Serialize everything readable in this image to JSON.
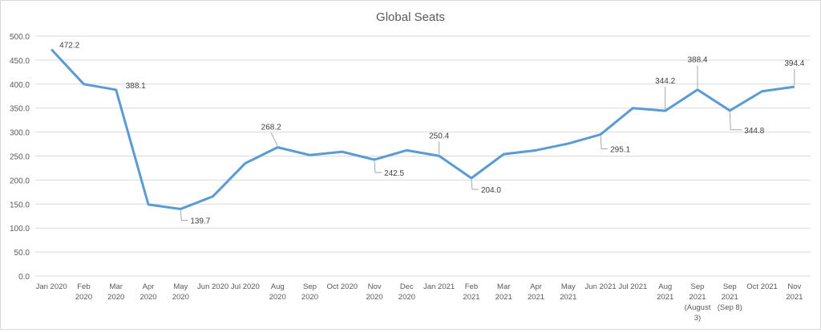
{
  "chart_data": {
    "type": "line",
    "title": "Global Seats",
    "xlabel": "",
    "ylabel": "",
    "ylim": [
      0,
      500
    ],
    "yticks": [
      "0.0",
      "50.0",
      "100.0",
      "150.0",
      "200.0",
      "250.0",
      "300.0",
      "350.0",
      "400.0",
      "450.0",
      "500.0"
    ],
    "grid": true,
    "legend": "none",
    "line_color": "#5b9bd5",
    "categories": [
      [
        "Jan 2020"
      ],
      [
        "Feb",
        "2020"
      ],
      [
        "Mar",
        "2020"
      ],
      [
        "Apr",
        "2020"
      ],
      [
        "May",
        "2020"
      ],
      [
        "Jun 2020"
      ],
      [
        "Jul 2020"
      ],
      [
        "Aug",
        "2020"
      ],
      [
        "Sep",
        "2020"
      ],
      [
        "Oct 2020"
      ],
      [
        "Nov",
        "2020"
      ],
      [
        "Dec",
        "2020"
      ],
      [
        "Jan 2021"
      ],
      [
        "Feb",
        "2021"
      ],
      [
        "Mar",
        "2021"
      ],
      [
        "Apr",
        "2021"
      ],
      [
        "May",
        "2021"
      ],
      [
        "Jun 2021"
      ],
      [
        "Jul 2021"
      ],
      [
        "Aug",
        "2021"
      ],
      [
        "Sep",
        "2021",
        "(August",
        "3)"
      ],
      [
        "Sep",
        "2021",
        "(Sep 8)"
      ],
      [
        "Oct 2021"
      ],
      [
        "Nov",
        "2021"
      ]
    ],
    "series": [
      {
        "name": "Global Seats",
        "values": [
          472.2,
          400.0,
          388.1,
          149.0,
          139.7,
          166.0,
          235.0,
          268.2,
          252.0,
          259.0,
          242.5,
          262.0,
          250.4,
          204.0,
          254.0,
          262.0,
          276.0,
          295.1,
          350.0,
          344.2,
          388.4,
          344.8,
          385.0,
          394.4
        ]
      }
    ],
    "data_labels": [
      {
        "index": 0,
        "text": "472.2"
      },
      {
        "index": 2,
        "text": "388.1"
      },
      {
        "index": 4,
        "text": "139.7"
      },
      {
        "index": 7,
        "text": "268.2"
      },
      {
        "index": 10,
        "text": "242.5"
      },
      {
        "index": 12,
        "text": "250.4"
      },
      {
        "index": 13,
        "text": "204.0"
      },
      {
        "index": 17,
        "text": "295.1"
      },
      {
        "index": 19,
        "text": "344.2"
      },
      {
        "index": 20,
        "text": "388.4"
      },
      {
        "index": 21,
        "text": "344.8"
      },
      {
        "index": 23,
        "text": "394.4"
      }
    ]
  }
}
